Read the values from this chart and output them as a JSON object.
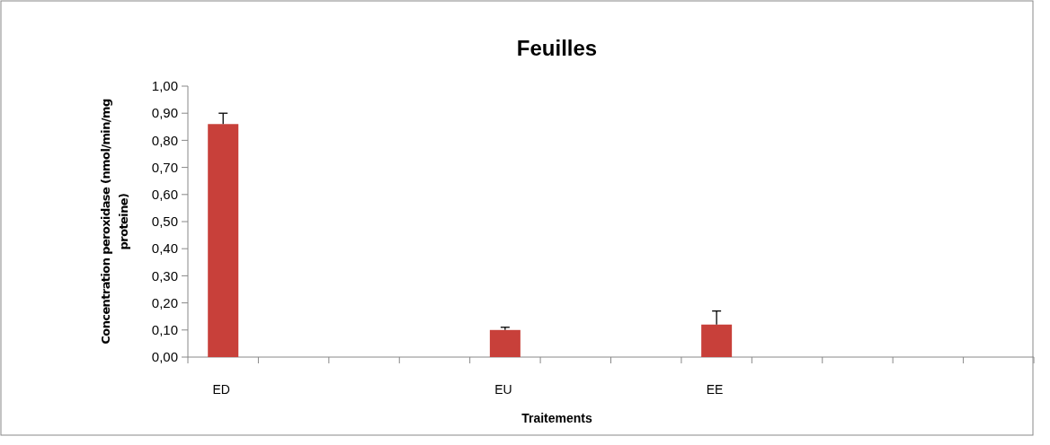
{
  "chart_data": {
    "type": "bar",
    "title": "Feuilles",
    "xlabel": "Traitements",
    "ylabel": "Concentration peroxidase (nmol/min/mg proteine)",
    "categories": [
      "ED",
      null,
      null,
      null,
      "EU",
      null,
      null,
      "EE",
      null,
      null,
      null,
      null
    ],
    "values": [
      0.86,
      null,
      null,
      null,
      0.1,
      null,
      null,
      0.12,
      null,
      null,
      null,
      null
    ],
    "errors": [
      [
        0.86,
        0.9
      ],
      null,
      null,
      null,
      [
        0.1,
        0.11
      ],
      null,
      null,
      [
        0.12,
        0.17
      ],
      null,
      null,
      null,
      null
    ],
    "color": "#c8403a",
    "ylim": [
      0,
      1
    ],
    "yticks": [
      {
        "value": 0,
        "label": "0,00"
      },
      {
        "value": 0.1,
        "label": "0,10"
      },
      {
        "value": 0.2,
        "label": "0,20"
      },
      {
        "value": 0.3,
        "label": "0,30"
      },
      {
        "value": 0.4,
        "label": "0,40"
      },
      {
        "value": 0.5,
        "label": "0,50"
      },
      {
        "value": 0.6,
        "label": "0,60"
      },
      {
        "value": 0.7,
        "label": "0,70"
      },
      {
        "value": 0.8,
        "label": "0,80"
      },
      {
        "value": 0.9,
        "label": "0,90"
      },
      {
        "value": 1,
        "label": "1,00"
      }
    ],
    "grid": false
  }
}
